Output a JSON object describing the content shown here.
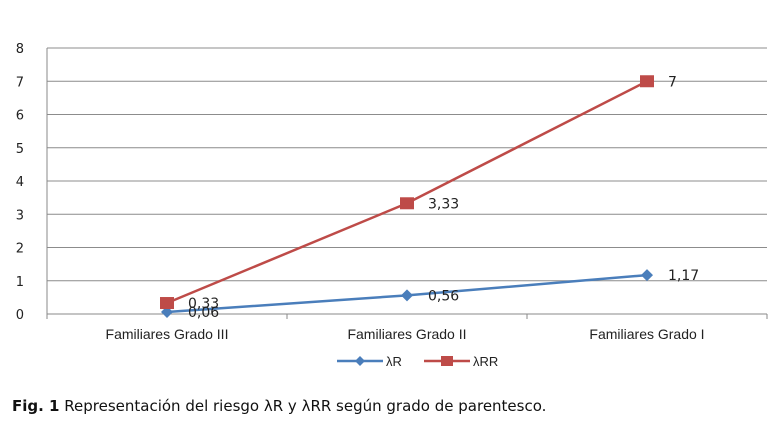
{
  "chart_data": {
    "type": "line",
    "categories": [
      "Familiares Grado III",
      "Familiares Grado II",
      "Familiares Grado I"
    ],
    "series": [
      {
        "name": "λR",
        "values": [
          0.06,
          0.56,
          1.17
        ],
        "labels": [
          "0,06",
          "0,56",
          "1,17"
        ],
        "color": "#4a7ebb",
        "marker": "diamond"
      },
      {
        "name": "λRR",
        "values": [
          0.33,
          3.33,
          7
        ],
        "labels": [
          "0,33",
          "3,33",
          "7"
        ],
        "color": "#be4b48",
        "marker": "square"
      }
    ],
    "ylim": [
      0,
      8
    ],
    "yticks": [
      "0",
      "1",
      "2",
      "3",
      "4",
      "5",
      "6",
      "7",
      "8"
    ],
    "grid": true,
    "legend_position": "bottom"
  },
  "caption": {
    "label": "Fig. 1",
    "text": "Representación del riesgo λR y λRR según grado de parentesco."
  }
}
